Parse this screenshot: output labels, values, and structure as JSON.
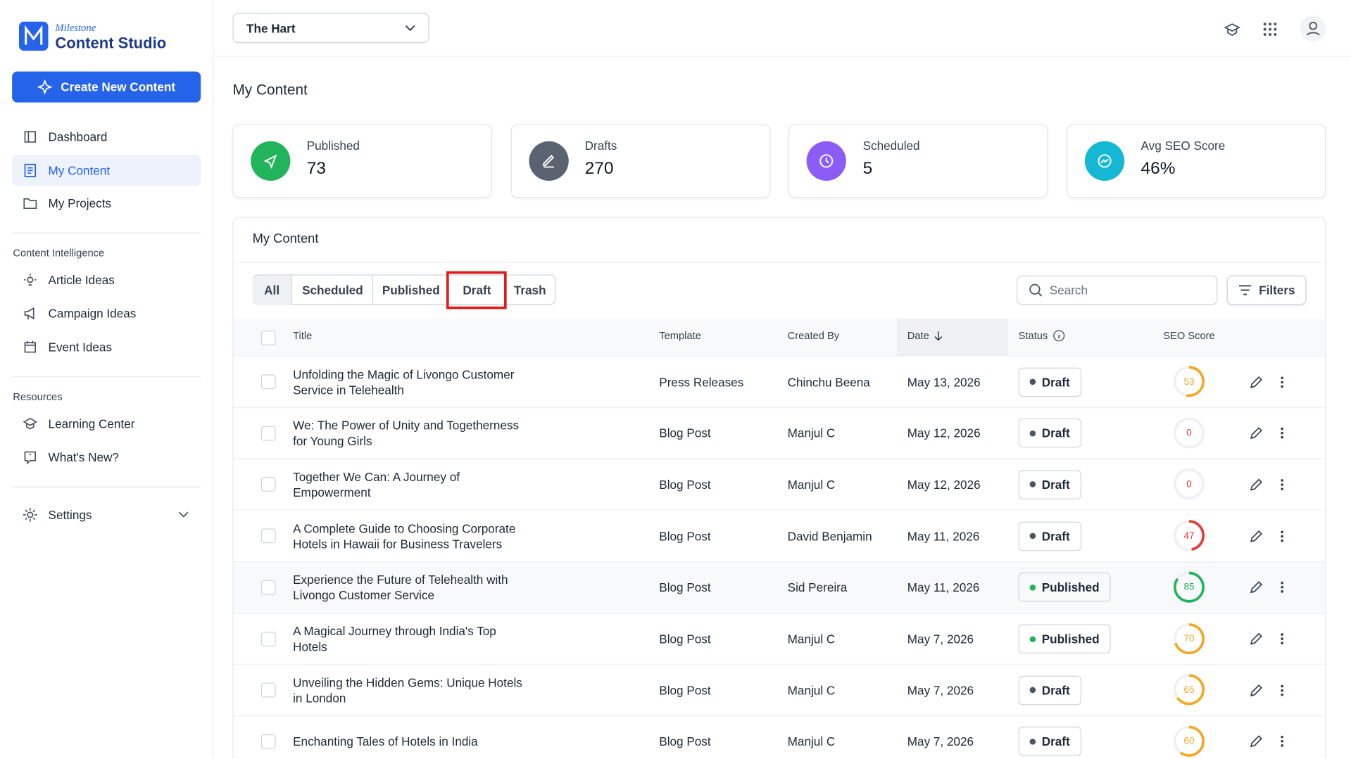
{
  "brand": {
    "small": "Milestone",
    "name": "Content Studio"
  },
  "sidebar": {
    "create_button": "Create New Content",
    "main": [
      "Dashboard",
      "My Content",
      "My Projects"
    ],
    "sections": [
      {
        "title": "Content Intelligence",
        "items": [
          "Article Ideas",
          "Campaign Ideas",
          "Event Ideas"
        ]
      },
      {
        "title": "Resources",
        "items": [
          "Learning Center",
          "What's New?"
        ]
      }
    ],
    "settings": "Settings"
  },
  "topbar": {
    "property": "The Hart"
  },
  "page_title": "My Content",
  "stats": [
    {
      "label": "Published",
      "value": "73"
    },
    {
      "label": "Drafts",
      "value": "270"
    },
    {
      "label": "Scheduled",
      "value": "5"
    },
    {
      "label": "Avg SEO Score",
      "value": "46%"
    }
  ],
  "panel": {
    "title": "My Content",
    "tabs": [
      "All",
      "Scheduled",
      "Published",
      "Draft",
      "Trash"
    ],
    "search": "Search",
    "filters": "Filters",
    "columns": [
      "Title",
      "Template",
      "Created By",
      "Date",
      "Status",
      "SEO Score"
    ],
    "rows": [
      [
        "Unfolding the Magic of Livongo Customer Service in Telehealth",
        "Press Releases",
        "Chinchu Beena",
        "May 13, 2026",
        "Draft",
        53
      ],
      [
        "We: The Power of Unity and Togetherness for Young Girls",
        "Blog Post",
        "Manjul C",
        "May 12, 2026",
        "Draft",
        0
      ],
      [
        "Together We Can: A Journey of Empowerment",
        "Blog Post",
        "Manjul C",
        "May 12, 2026",
        "Draft",
        0
      ],
      [
        "A Complete Guide to Choosing Corporate Hotels in Hawaii for Business Travelers",
        "Blog Post",
        "David Benjamin",
        "May 11, 2026",
        "Draft",
        47
      ],
      [
        "Experience the Future of Telehealth with Livongo Customer Service",
        "Blog Post",
        "Sid Pereira",
        "May 11, 2026",
        "Published",
        85
      ],
      [
        "A Magical Journey through India's Top Hotels",
        "Blog Post",
        "Manjul C",
        "May 7, 2026",
        "Published",
        70
      ],
      [
        "Unveiling the Hidden Gems: Unique Hotels in London",
        "Blog Post",
        "Manjul C",
        "May 7, 2026",
        "Draft",
        65
      ],
      [
        "Enchanting Tales of Hotels in India",
        "Blog Post",
        "Manjul C",
        "May 7, 2026",
        "Draft",
        60
      ]
    ]
  }
}
